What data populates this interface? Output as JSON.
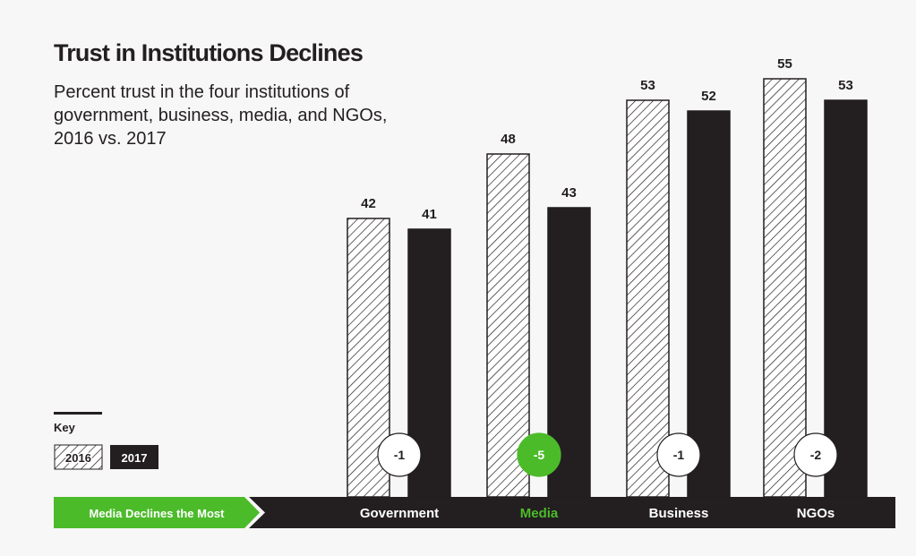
{
  "chart_data": {
    "type": "bar",
    "title": "Trust in Institutions Declines",
    "subtitle": "Percent trust in the four institutions of government, business, media, and NGOs, 2016 vs. 2017",
    "categories": [
      "Government",
      "Media",
      "Business",
      "NGOs"
    ],
    "series": [
      {
        "name": "2016",
        "values": [
          42,
          48,
          53,
          55
        ]
      },
      {
        "name": "2017",
        "values": [
          41,
          43,
          52,
          53
        ]
      }
    ],
    "changes": [
      "-1",
      "-5",
      "-1",
      "-2"
    ],
    "highlight_category": "Media",
    "callout": "Media Declines the Most",
    "legend": {
      "title": "Key",
      "placement": "bottom-left"
    },
    "grid": false
  },
  "colors": {
    "accent": "#4cbb2a",
    "dark": "#231f20",
    "background": "#f7f7f7"
  }
}
